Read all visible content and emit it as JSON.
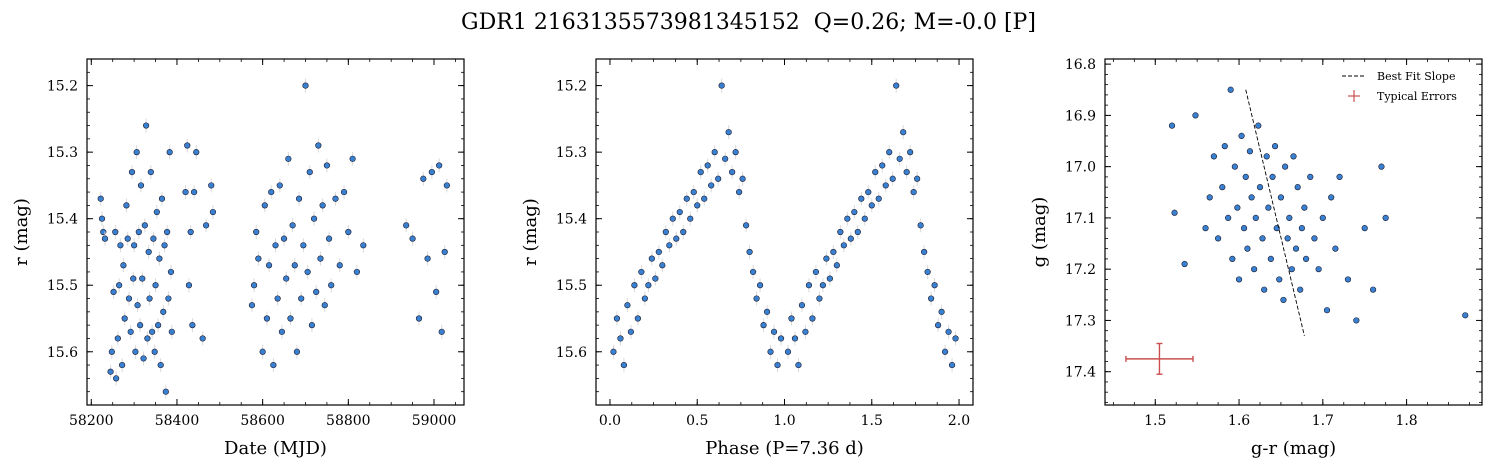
{
  "figure": {
    "suptitle": "GDR1 2163135573981345152  Q=0.26; M=-0.0 [P]",
    "marker_color": "#3a80d0",
    "marker_edge": "#1a1a2e",
    "errorbar_color": "#d9d9d9",
    "fit_color": "#000000",
    "typical_error_color": "#c9504e"
  },
  "chart_data": [
    {
      "type": "scatter",
      "name": "lightcurve",
      "xlabel": "Date (MJD)",
      "ylabel": "r (mag)",
      "xlim": [
        58190,
        59070
      ],
      "ylim": [
        15.68,
        15.16
      ],
      "y_inverted": true,
      "xticks": [
        58200,
        58400,
        58600,
        58800,
        59000
      ],
      "xtick_labels": [
        "58200",
        "58400",
        "58600",
        "58800",
        "59000"
      ],
      "yticks": [
        15.2,
        15.3,
        15.4,
        15.5,
        15.6
      ],
      "ytick_labels": [
        "15.2",
        "15.3",
        "15.4",
        "15.5",
        "15.6"
      ],
      "x": [
        58222,
        58225,
        58228,
        58232,
        58245,
        58248,
        58252,
        58256,
        58258,
        58262,
        58265,
        58268,
        58272,
        58275,
        58278,
        58282,
        58285,
        58288,
        58292,
        58295,
        58298,
        58300,
        58303,
        58306,
        58308,
        58311,
        58314,
        58316,
        58319,
        58322,
        58325,
        58328,
        58331,
        58334,
        58336,
        58339,
        58342,
        58345,
        58348,
        58350,
        58353,
        58356,
        58359,
        58362,
        58365,
        58368,
        58371,
        58374,
        58377,
        58380,
        58383,
        58386,
        58388,
        58420,
        58424,
        58428,
        58432,
        58436,
        58440,
        58445,
        58460,
        58468,
        58480,
        58484,
        58575,
        58580,
        58585,
        58590,
        58600,
        58605,
        58610,
        58615,
        58620,
        58625,
        58630,
        58635,
        58640,
        58645,
        58650,
        58655,
        58660,
        58665,
        58670,
        58675,
        58680,
        58685,
        58690,
        58695,
        58700,
        58705,
        58710,
        58715,
        58720,
        58725,
        58730,
        58735,
        58740,
        58745,
        58750,
        58755,
        58760,
        58770,
        58780,
        58790,
        58800,
        58810,
        58820,
        58835,
        58935,
        58950,
        58965,
        58975,
        58985,
        58995,
        59005,
        59012,
        59018,
        59025,
        59030
      ],
      "y": [
        15.37,
        15.4,
        15.42,
        15.43,
        15.63,
        15.6,
        15.51,
        15.42,
        15.64,
        15.58,
        15.5,
        15.44,
        15.62,
        15.47,
        15.55,
        15.38,
        15.43,
        15.52,
        15.57,
        15.33,
        15.49,
        15.44,
        15.6,
        15.3,
        15.53,
        15.42,
        15.56,
        15.35,
        15.49,
        15.61,
        15.41,
        15.26,
        15.58,
        15.45,
        15.52,
        15.33,
        15.57,
        15.43,
        15.6,
        15.5,
        15.39,
        15.56,
        15.46,
        15.62,
        15.37,
        15.54,
        15.44,
        15.66,
        15.42,
        15.52,
        15.3,
        15.48,
        15.57,
        15.36,
        15.29,
        15.5,
        15.42,
        15.56,
        15.36,
        15.3,
        15.58,
        15.41,
        15.35,
        15.39,
        15.53,
        15.5,
        15.42,
        15.46,
        15.6,
        15.38,
        15.55,
        15.47,
        15.36,
        15.62,
        15.44,
        15.52,
        15.35,
        15.57,
        15.43,
        15.49,
        15.31,
        15.55,
        15.41,
        15.47,
        15.6,
        15.37,
        15.52,
        15.44,
        15.2,
        15.48,
        15.33,
        15.56,
        15.4,
        15.51,
        15.29,
        15.46,
        15.38,
        15.53,
        15.32,
        15.43,
        15.5,
        15.37,
        15.47,
        15.36,
        15.42,
        15.31,
        15.48,
        15.44,
        15.41,
        15.43,
        15.55,
        15.34,
        15.46,
        15.33,
        15.51,
        15.32,
        15.57,
        15.45,
        15.35
      ]
    },
    {
      "type": "scatter",
      "name": "phase_folded",
      "xlabel": "Phase (P=7.36 d)",
      "ylabel": "r (mag)",
      "xlim": [
        -0.08,
        2.08
      ],
      "ylim": [
        15.68,
        15.16
      ],
      "y_inverted": true,
      "xticks": [
        0.0,
        0.5,
        1.0,
        1.5,
        2.0
      ],
      "xtick_labels": [
        "0.0",
        "0.5",
        "1.0",
        "1.5",
        "2.0"
      ],
      "yticks": [
        15.2,
        15.3,
        15.4,
        15.5,
        15.6
      ],
      "ytick_labels": [
        "15.2",
        "15.3",
        "15.4",
        "15.5",
        "15.6"
      ],
      "x": [
        0.02,
        0.04,
        0.06,
        0.08,
        0.1,
        0.12,
        0.14,
        0.16,
        0.18,
        0.2,
        0.22,
        0.24,
        0.26,
        0.28,
        0.3,
        0.32,
        0.34,
        0.36,
        0.38,
        0.4,
        0.42,
        0.44,
        0.46,
        0.48,
        0.5,
        0.52,
        0.54,
        0.56,
        0.58,
        0.6,
        0.62,
        0.64,
        0.66,
        0.68,
        0.7,
        0.72,
        0.74,
        0.76,
        0.78,
        0.8,
        0.82,
        0.84,
        0.86,
        0.88,
        0.9,
        0.92,
        0.94,
        0.96,
        0.98,
        1.02,
        1.04,
        1.06,
        1.08,
        1.1,
        1.12,
        1.14,
        1.16,
        1.18,
        1.2,
        1.22,
        1.24,
        1.26,
        1.28,
        1.3,
        1.32,
        1.34,
        1.36,
        1.38,
        1.4,
        1.42,
        1.44,
        1.46,
        1.48,
        1.5,
        1.52,
        1.54,
        1.56,
        1.58,
        1.6,
        1.62,
        1.64,
        1.66,
        1.68,
        1.7,
        1.72,
        1.74,
        1.76,
        1.78,
        1.8,
        1.82,
        1.84,
        1.86,
        1.88,
        1.9,
        1.92,
        1.94,
        1.96,
        1.98
      ],
      "y": [
        15.6,
        15.55,
        15.58,
        15.62,
        15.53,
        15.57,
        15.5,
        15.55,
        15.48,
        15.52,
        15.5,
        15.46,
        15.49,
        15.45,
        15.47,
        15.42,
        15.44,
        15.4,
        15.43,
        15.39,
        15.42,
        15.37,
        15.4,
        15.36,
        15.38,
        15.33,
        15.37,
        15.32,
        15.35,
        15.3,
        15.34,
        15.2,
        15.31,
        15.27,
        15.33,
        15.3,
        15.36,
        15.34,
        15.41,
        15.45,
        15.48,
        15.52,
        15.5,
        15.56,
        15.54,
        15.6,
        15.57,
        15.62,
        15.58,
        15.6,
        15.55,
        15.58,
        15.62,
        15.53,
        15.57,
        15.5,
        15.55,
        15.48,
        15.52,
        15.5,
        15.46,
        15.49,
        15.45,
        15.47,
        15.42,
        15.44,
        15.4,
        15.43,
        15.39,
        15.42,
        15.37,
        15.4,
        15.36,
        15.38,
        15.33,
        15.37,
        15.32,
        15.35,
        15.3,
        15.34,
        15.2,
        15.31,
        15.27,
        15.33,
        15.3,
        15.36,
        15.34,
        15.41,
        15.45,
        15.48,
        15.52,
        15.5,
        15.56,
        15.54,
        15.6,
        15.57,
        15.62,
        15.58
      ]
    },
    {
      "type": "scatter",
      "name": "color_magnitude",
      "xlabel": "g-r (mag)",
      "ylabel": "g (mag)",
      "xlim": [
        1.44,
        1.89
      ],
      "ylim": [
        17.465,
        16.79
      ],
      "y_inverted": true,
      "xticks": [
        1.5,
        1.6,
        1.7,
        1.8
      ],
      "xtick_labels": [
        "1.5",
        "1.6",
        "1.7",
        "1.8"
      ],
      "yticks": [
        16.8,
        16.9,
        17.0,
        17.1,
        17.2,
        17.3,
        17.4
      ],
      "ytick_labels": [
        "16.8",
        "16.9",
        "17.0",
        "17.1",
        "17.2",
        "17.3",
        "17.4"
      ],
      "x": [
        1.52,
        1.523,
        1.535,
        1.548,
        1.56,
        1.565,
        1.57,
        1.575,
        1.58,
        1.583,
        1.587,
        1.59,
        1.592,
        1.595,
        1.598,
        1.6,
        1.603,
        1.606,
        1.608,
        1.61,
        1.613,
        1.615,
        1.618,
        1.62,
        1.623,
        1.625,
        1.628,
        1.63,
        1.633,
        1.635,
        1.638,
        1.64,
        1.643,
        1.645,
        1.648,
        1.65,
        1.653,
        1.655,
        1.658,
        1.66,
        1.663,
        1.665,
        1.668,
        1.67,
        1.673,
        1.675,
        1.678,
        1.68,
        1.685,
        1.69,
        1.695,
        1.7,
        1.705,
        1.71,
        1.715,
        1.72,
        1.73,
        1.74,
        1.75,
        1.76,
        1.77,
        1.775,
        1.87
      ],
      "y": [
        16.92,
        17.09,
        17.19,
        16.9,
        17.12,
        17.06,
        16.98,
        17.14,
        17.04,
        16.96,
        17.1,
        16.85,
        17.18,
        17.0,
        17.08,
        17.22,
        16.94,
        17.12,
        17.02,
        17.16,
        16.97,
        17.06,
        17.2,
        17.1,
        16.92,
        17.04,
        17.14,
        17.24,
        16.98,
        17.08,
        17.18,
        17.02,
        16.96,
        17.12,
        17.22,
        17.06,
        17.26,
        17.0,
        17.14,
        17.1,
        17.2,
        16.98,
        17.16,
        17.04,
        17.24,
        17.12,
        17.08,
        17.18,
        17.02,
        17.14,
        17.2,
        17.1,
        17.28,
        17.06,
        17.16,
        17.02,
        17.22,
        17.3,
        17.12,
        17.24,
        17.0,
        17.1,
        17.29
      ],
      "fit_line": {
        "x": [
          1.608,
          1.678
        ],
        "y": [
          16.85,
          17.33
        ]
      },
      "typical_error": {
        "x": 1.505,
        "y": 17.375,
        "xerr": 0.04,
        "yerr": 0.03
      },
      "legend": {
        "placement": "top-right",
        "entries": [
          {
            "label": "Best Fit Slope",
            "style": "dashed-line"
          },
          {
            "label": "Typical Errors",
            "style": "errorbar"
          }
        ]
      }
    }
  ]
}
